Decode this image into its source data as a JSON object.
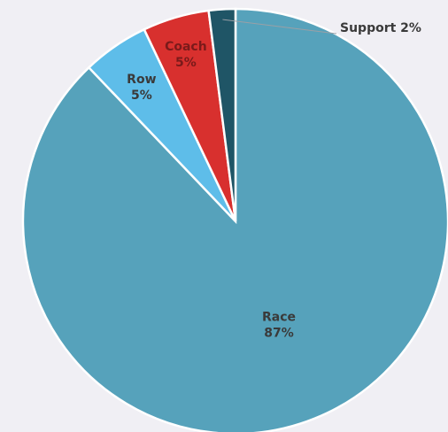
{
  "chart_data": {
    "type": "pie",
    "title": "",
    "slices": [
      {
        "label": "Race",
        "value_text": "87%",
        "value": 87,
        "color": "#56a2bb",
        "text_color": "#3a3a3a"
      },
      {
        "label": "Row",
        "value_text": "5%",
        "value": 5,
        "color": "#5ebde9",
        "text_color": "#3a3a3a"
      },
      {
        "label": "Coach",
        "value_text": "5%",
        "value": 5,
        "color": "#d8302e",
        "text_color": "#7a1a1a"
      },
      {
        "label": "Support",
        "value_text": "2%",
        "value": 2,
        "color": "#1f5566",
        "text_color": "#3a3a3a"
      }
    ],
    "start_angle_deg": 0,
    "direction": "clockwise",
    "slice_border_color": "#ffffff",
    "background_color": "#f0eff4",
    "support_label": "Support 2%"
  }
}
